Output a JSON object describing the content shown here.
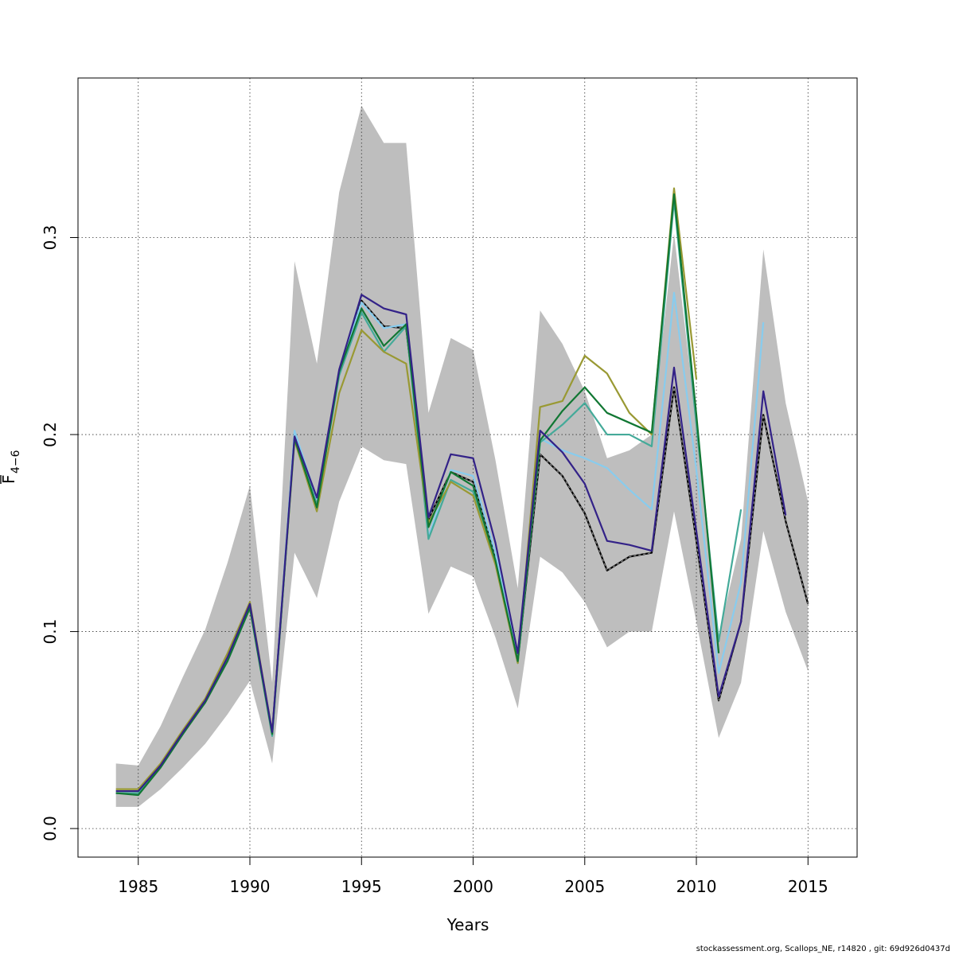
{
  "chart_data": {
    "type": "line",
    "xlabel": "Years",
    "ylabel_main": "F",
    "ylabel_sub": "4−6",
    "xlim": [
      1982.3,
      2017.2
    ],
    "ylim": [
      -0.0145,
      0.381
    ],
    "xticks": [
      1985,
      1990,
      1995,
      2000,
      2005,
      2010,
      2015
    ],
    "yticks": [
      0.0,
      0.1,
      0.2,
      0.3
    ],
    "ytick_labels": [
      "0.0",
      "0.1",
      "0.2",
      "0.3"
    ],
    "grid": true,
    "band": {
      "color": "#bebebe",
      "x": [
        1984,
        1985,
        1986,
        1987,
        1988,
        1989,
        1990,
        1991,
        1992,
        1993,
        1994,
        1995,
        1996,
        1997,
        1998,
        1999,
        2000,
        2001,
        2002,
        2003,
        2004,
        2005,
        2006,
        2007,
        2008,
        2009,
        2010,
        2011,
        2012,
        2013,
        2014,
        2015
      ],
      "lower": [
        0.011,
        0.011,
        0.02,
        0.031,
        0.043,
        0.058,
        0.075,
        0.033,
        0.14,
        0.117,
        0.166,
        0.194,
        0.187,
        0.185,
        0.109,
        0.133,
        0.128,
        0.097,
        0.061,
        0.138,
        0.13,
        0.115,
        0.092,
        0.1,
        0.1,
        0.161,
        0.105,
        0.046,
        0.074,
        0.151,
        0.11,
        0.08
      ],
      "upper": [
        0.033,
        0.032,
        0.052,
        0.077,
        0.101,
        0.135,
        0.174,
        0.074,
        0.288,
        0.236,
        0.323,
        0.367,
        0.348,
        0.348,
        0.211,
        0.249,
        0.243,
        0.187,
        0.122,
        0.263,
        0.246,
        0.222,
        0.188,
        0.192,
        0.2,
        0.302,
        0.205,
        0.098,
        0.147,
        0.294,
        0.216,
        0.166
      ]
    },
    "series": [
      {
        "color": "#000000",
        "dashed": true,
        "x": [
          1984,
          1985,
          1986,
          1987,
          1988,
          1989,
          1990,
          1991,
          1992,
          1993,
          1994,
          1995,
          1996,
          1997,
          1998,
          1999,
          2000,
          2001,
          2002,
          2003,
          2004,
          2005,
          2006,
          2007,
          2008,
          2009,
          2010,
          2011,
          2012,
          2013,
          2014,
          2015
        ],
        "y": [
          0.018,
          0.018,
          0.032,
          0.048,
          0.065,
          0.086,
          0.113,
          0.048,
          0.2,
          0.166,
          0.232,
          0.268,
          0.255,
          0.254,
          0.157,
          0.181,
          0.176,
          0.138,
          0.085,
          0.19,
          0.179,
          0.16,
          0.131,
          0.138,
          0.14,
          0.224,
          0.146,
          0.065,
          0.105,
          0.21,
          0.156,
          0.114
        ]
      },
      {
        "color": "#88ccee",
        "x": [
          1984,
          1985,
          1986,
          1987,
          1988,
          1989,
          1990,
          1991,
          1992,
          1993,
          1994,
          1995,
          1996,
          1997,
          1998,
          1999,
          2000,
          2001,
          2002,
          2003,
          2004,
          2005,
          2006,
          2007,
          2008,
          2009,
          2010,
          2011,
          2012,
          2013
        ],
        "y": [
          0.018,
          0.018,
          0.032,
          0.048,
          0.065,
          0.086,
          0.113,
          0.048,
          0.202,
          0.167,
          0.232,
          0.267,
          0.254,
          0.256,
          0.148,
          0.182,
          0.179,
          0.14,
          0.085,
          0.198,
          0.192,
          0.188,
          0.183,
          0.172,
          0.162,
          0.272,
          0.182,
          0.079,
          0.125,
          0.257
        ]
      },
      {
        "color": "#44aa99",
        "x": [
          1984,
          1985,
          1986,
          1987,
          1988,
          1989,
          1990,
          1991,
          1992,
          1993,
          1994,
          1995,
          1996,
          1997,
          1998,
          1999,
          2000,
          2001,
          2002,
          2003,
          2004,
          2005,
          2006,
          2007,
          2008,
          2009,
          2010,
          2011,
          2012
        ],
        "y": [
          0.018,
          0.018,
          0.031,
          0.048,
          0.065,
          0.085,
          0.112,
          0.047,
          0.199,
          0.164,
          0.23,
          0.262,
          0.242,
          0.255,
          0.147,
          0.177,
          0.171,
          0.136,
          0.084,
          0.196,
          0.205,
          0.216,
          0.2,
          0.2,
          0.194,
          0.319,
          0.205,
          0.095,
          0.162
        ]
      },
      {
        "color": "#999933",
        "x": [
          1984,
          1985,
          1986,
          1987,
          1988,
          1989,
          1990,
          1991,
          1992,
          1993,
          1994,
          1995,
          1996,
          1997,
          1998,
          1999,
          2000,
          2001,
          2002,
          2003,
          2004,
          2005,
          2006,
          2007,
          2008,
          2009,
          2010
        ],
        "y": [
          0.02,
          0.02,
          0.033,
          0.05,
          0.066,
          0.089,
          0.115,
          0.049,
          0.197,
          0.161,
          0.221,
          0.253,
          0.242,
          0.236,
          0.155,
          0.176,
          0.169,
          0.134,
          0.084,
          0.214,
          0.217,
          0.24,
          0.231,
          0.211,
          0.2,
          0.325,
          0.228
        ]
      },
      {
        "color": "#117733",
        "x": [
          1984,
          1985,
          1986,
          1987,
          1988,
          1989,
          1990,
          1991,
          1992,
          1993,
          1994,
          1995,
          1996,
          1997,
          1998,
          1999,
          2000,
          2001,
          2002,
          2003,
          2004,
          2005,
          2006,
          2007,
          2008,
          2009,
          2010,
          2011
        ],
        "y": [
          0.018,
          0.017,
          0.031,
          0.048,
          0.064,
          0.085,
          0.112,
          0.048,
          0.198,
          0.163,
          0.232,
          0.264,
          0.245,
          0.256,
          0.153,
          0.181,
          0.174,
          0.136,
          0.085,
          0.197,
          0.212,
          0.224,
          0.211,
          0.206,
          0.201,
          0.322,
          0.21,
          0.089
        ]
      },
      {
        "color": "#332288",
        "x": [
          1984,
          1985,
          1986,
          1987,
          1988,
          1989,
          1990,
          1991,
          1992,
          1993,
          1994,
          1995,
          1996,
          1997,
          1998,
          1999,
          2000,
          2001,
          2002,
          2003,
          2004,
          2005,
          2006,
          2007,
          2008,
          2009,
          2010,
          2011,
          2012,
          2013,
          2014
        ],
        "y": [
          0.019,
          0.019,
          0.032,
          0.049,
          0.065,
          0.087,
          0.114,
          0.049,
          0.199,
          0.168,
          0.233,
          0.271,
          0.264,
          0.261,
          0.158,
          0.19,
          0.188,
          0.145,
          0.089,
          0.202,
          0.191,
          0.175,
          0.146,
          0.144,
          0.141,
          0.234,
          0.151,
          0.067,
          0.105,
          0.222,
          0.159
        ]
      }
    ]
  },
  "footer": {
    "credit": "stockassessment.org, Scallops_NE, r14820 , git: 69d926d0437d"
  }
}
